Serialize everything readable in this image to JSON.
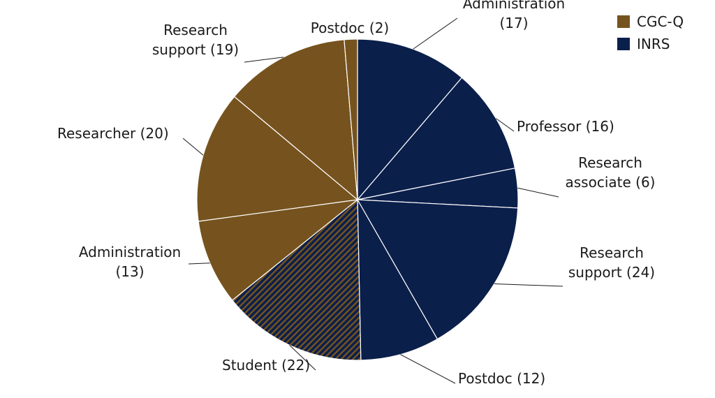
{
  "colors": {
    "CGC-Q": "#76531e",
    "INRS": "#0b1f4b",
    "student_hatch": "#76531e",
    "background": "#ffffff"
  },
  "chart_data": {
    "type": "pie",
    "start_angle_deg": 0,
    "direction": "clockwise",
    "legend_position": "top-right",
    "legend": [
      {
        "name": "CGC-Q",
        "color": "#76531e"
      },
      {
        "name": "INRS",
        "color": "#0b1f4b"
      }
    ],
    "slices": [
      {
        "label": "Administration (17)",
        "lines": [
          "Administration",
          "(17)"
        ],
        "value": 17,
        "group": "INRS"
      },
      {
        "label": "Professor (16)",
        "lines": [
          "Professor (16)"
        ],
        "value": 16,
        "group": "INRS"
      },
      {
        "label": "Research associate (6)",
        "lines": [
          "Research",
          "associate (6)"
        ],
        "value": 6,
        "group": "INRS"
      },
      {
        "label": "Research support (24)",
        "lines": [
          "Research",
          "support (24)"
        ],
        "value": 24,
        "group": "INRS"
      },
      {
        "label": "Postdoc (12)",
        "lines": [
          "Postdoc (12)"
        ],
        "value": 12,
        "group": "INRS"
      },
      {
        "label": "Student (22)",
        "lines": [
          "Student (22)"
        ],
        "value": 22,
        "group": "shared"
      },
      {
        "label": "Administration (13)",
        "lines": [
          "Administration",
          "(13)"
        ],
        "value": 13,
        "group": "CGC-Q"
      },
      {
        "label": "Researcher (20)",
        "lines": [
          "Researcher (20)"
        ],
        "value": 20,
        "group": "CGC-Q"
      },
      {
        "label": "Research support (19)",
        "lines": [
          "Research",
          "support (19)"
        ],
        "value": 19,
        "group": "CGC-Q"
      },
      {
        "label": "Postdoc (2)",
        "lines": [
          "Postdoc (2)"
        ],
        "value": 2,
        "group": "CGC-Q"
      }
    ]
  }
}
